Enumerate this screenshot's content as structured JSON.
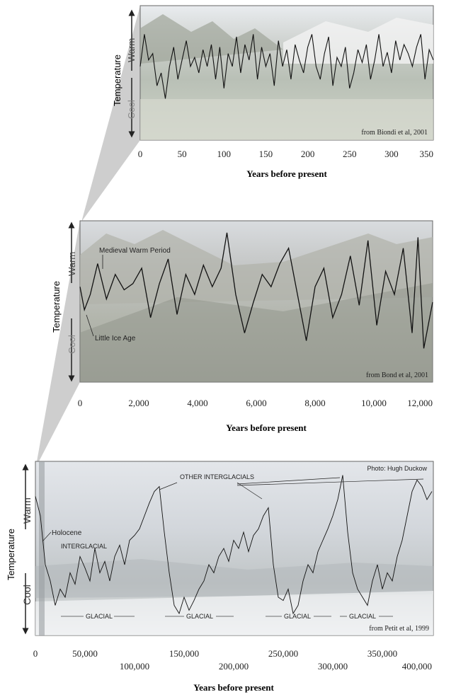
{
  "common": {
    "ylabel": "Temperature",
    "warm": "Warm",
    "cool": "Cool",
    "xlabel": "Years before present"
  },
  "chart_data": [
    {
      "type": "line",
      "title": "",
      "xlabel": "Years before present",
      "ylabel": "Temperature",
      "x_ticks": [
        "0",
        "50",
        "100",
        "150",
        "200",
        "250",
        "300",
        "350"
      ],
      "xlim": [
        0,
        350
      ],
      "ylim": [
        0,
        100
      ],
      "source": "from Biondi et al, 2001",
      "x": [
        0,
        5,
        10,
        15,
        20,
        25,
        30,
        35,
        40,
        45,
        50,
        55,
        60,
        65,
        70,
        75,
        80,
        85,
        90,
        95,
        100,
        105,
        110,
        115,
        120,
        125,
        130,
        135,
        140,
        145,
        150,
        155,
        160,
        165,
        170,
        175,
        180,
        185,
        190,
        195,
        200,
        205,
        210,
        215,
        220,
        225,
        230,
        235,
        240,
        245,
        250,
        255,
        260,
        265,
        270,
        275,
        280,
        285,
        290,
        295,
        300,
        305,
        310,
        315,
        320,
        325,
        330,
        335,
        340,
        345,
        350
      ],
      "y": [
        55,
        80,
        60,
        65,
        40,
        50,
        30,
        55,
        70,
        45,
        60,
        75,
        55,
        62,
        50,
        68,
        55,
        72,
        45,
        70,
        38,
        65,
        55,
        78,
        50,
        72,
        60,
        80,
        45,
        70,
        55,
        65,
        40,
        75,
        55,
        68,
        45,
        72,
        60,
        50,
        70,
        80,
        55,
        45,
        65,
        78,
        40,
        62,
        55,
        70,
        38,
        50,
        68,
        58,
        72,
        45,
        60,
        80,
        55,
        66,
        50,
        75,
        60,
        72,
        65,
        55,
        70,
        80,
        45,
        68,
        60
      ],
      "annotations": []
    },
    {
      "type": "line",
      "title": "",
      "xlabel": "Years before present",
      "ylabel": "Temperature",
      "x_ticks": [
        "0",
        "2,000",
        "4,000",
        "6,000",
        "8,000",
        "10,000",
        "12,000"
      ],
      "xlim": [
        0,
        12000
      ],
      "ylim": [
        0,
        100
      ],
      "source": "from Bond et al, 2001",
      "x": [
        0,
        150,
        350,
        600,
        900,
        1200,
        1500,
        1800,
        2100,
        2400,
        2700,
        3000,
        3300,
        3600,
        3900,
        4200,
        4500,
        4800,
        5000,
        5300,
        5600,
        5900,
        6200,
        6500,
        6800,
        7100,
        7400,
        7700,
        8000,
        8300,
        8600,
        8900,
        9200,
        9500,
        9800,
        10100,
        10400,
        10700,
        11000,
        11300,
        11500,
        11700,
        12000
      ],
      "y": [
        60,
        45,
        55,
        75,
        52,
        68,
        58,
        62,
        72,
        40,
        62,
        78,
        42,
        68,
        55,
        74,
        60,
        72,
        95,
        55,
        30,
        50,
        68,
        60,
        75,
        85,
        55,
        25,
        60,
        72,
        40,
        55,
        80,
        48,
        90,
        35,
        70,
        55,
        85,
        30,
        92,
        20,
        50
      ],
      "annotations": [
        "Medieval Warm Period",
        "Little Ice Age"
      ]
    },
    {
      "type": "line",
      "title": "",
      "xlabel": "Years before present",
      "ylabel": "Temperature",
      "x_ticks": [
        "0",
        "50,000",
        "100,000",
        "150,000",
        "200,000",
        "250,000",
        "300,000",
        "350,000",
        "400,000"
      ],
      "xlim": [
        0,
        400000
      ],
      "ylim": [
        0,
        100
      ],
      "source": "from Petit et al, 1999",
      "credit": "Photo: Hugh Duckow",
      "x": [
        0,
        5000,
        10000,
        15000,
        20000,
        25000,
        30000,
        35000,
        40000,
        45000,
        50000,
        55000,
        60000,
        65000,
        70000,
        75000,
        80000,
        85000,
        90000,
        95000,
        100000,
        105000,
        110000,
        115000,
        120000,
        125000,
        130000,
        135000,
        140000,
        145000,
        150000,
        155000,
        160000,
        165000,
        170000,
        175000,
        180000,
        185000,
        190000,
        195000,
        200000,
        205000,
        210000,
        215000,
        220000,
        225000,
        230000,
        235000,
        240000,
        245000,
        250000,
        255000,
        260000,
        265000,
        270000,
        275000,
        280000,
        285000,
        290000,
        295000,
        300000,
        305000,
        310000,
        315000,
        320000,
        325000,
        330000,
        335000,
        340000,
        345000,
        350000,
        355000,
        360000,
        365000,
        370000,
        375000,
        380000,
        385000,
        390000,
        395000,
        400000
      ],
      "y": [
        82,
        70,
        40,
        30,
        15,
        25,
        20,
        35,
        28,
        45,
        38,
        30,
        50,
        35,
        42,
        30,
        45,
        52,
        40,
        55,
        58,
        62,
        70,
        78,
        85,
        88,
        60,
        35,
        15,
        10,
        20,
        12,
        18,
        25,
        30,
        40,
        35,
        45,
        50,
        42,
        55,
        50,
        60,
        48,
        58,
        62,
        70,
        75,
        40,
        20,
        18,
        25,
        10,
        15,
        30,
        40,
        35,
        48,
        55,
        62,
        70,
        80,
        95,
        60,
        35,
        25,
        20,
        15,
        30,
        40,
        25,
        35,
        30,
        45,
        55,
        70,
        85,
        92,
        88,
        80,
        85
      ],
      "annotations": [
        "OTHER INTERGLACIALS",
        "Holocene",
        "INTERGLACIAL",
        "GLACIAL",
        "GLACIAL",
        "GLACIAL",
        "GLACIAL"
      ]
    }
  ]
}
